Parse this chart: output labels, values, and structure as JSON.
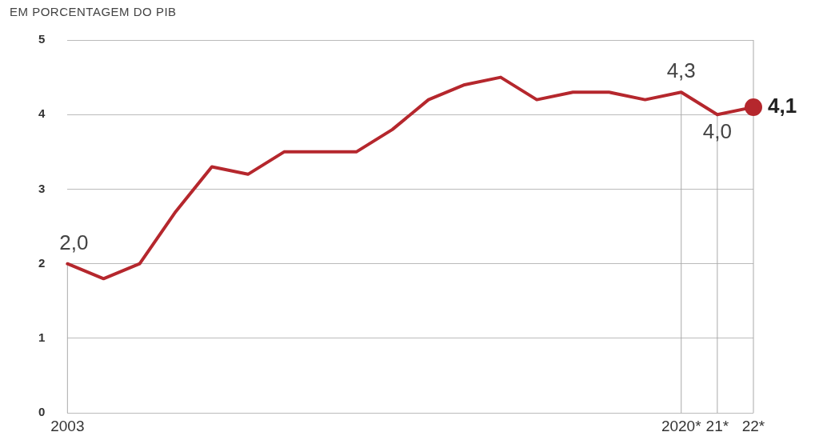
{
  "chart_data": {
    "type": "line",
    "subtitle": "EM PORCENTAGEM DO PIB",
    "categories": [
      "2003",
      null,
      null,
      null,
      null,
      null,
      null,
      null,
      null,
      null,
      null,
      null,
      null,
      null,
      null,
      null,
      null,
      "2020*",
      "21*",
      "22*"
    ],
    "series": [
      {
        "color": "#b5272d",
        "values": [
          2.0,
          1.8,
          2.0,
          2.7,
          3.3,
          3.2,
          3.5,
          3.5,
          3.5,
          3.8,
          4.2,
          4.4,
          4.5,
          4.2,
          4.3,
          4.3,
          4.2,
          4.3,
          4.0,
          4.1
        ],
        "value_labels": [
          "2,0",
          null,
          null,
          null,
          null,
          null,
          null,
          null,
          null,
          null,
          null,
          null,
          null,
          null,
          null,
          null,
          null,
          "4,3",
          "4,0",
          "4,1"
        ]
      }
    ],
    "ylim": [
      0,
      5
    ],
    "yticks": [
      0,
      1,
      2,
      3,
      4,
      5
    ],
    "grid": true,
    "legend": false,
    "marker": "none",
    "line_style": "solid"
  }
}
